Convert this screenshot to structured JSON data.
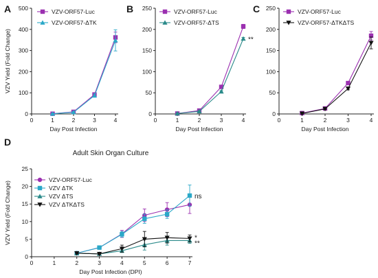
{
  "chart_data": [
    {
      "panel": "A",
      "type": "line",
      "ylabel": "VZV Yield (Fold Change)",
      "xlabel": "Day Post Infection",
      "xlim": [
        0,
        4
      ],
      "ylim": [
        0,
        500
      ],
      "xticks": [
        0,
        1,
        2,
        3,
        4
      ],
      "yticks": [
        0,
        100,
        200,
        300,
        400,
        500
      ],
      "legend_position": "top-left",
      "series": [
        {
          "name": "VZV-ORF57-Luc",
          "color": "#9b30b0",
          "marker": "square",
          "x": [
            1,
            2,
            3,
            4
          ],
          "y": [
            1,
            10,
            92,
            362
          ],
          "err": [
            2,
            4,
            8,
            25
          ]
        },
        {
          "name": "VZV-ORF57-ΔTK",
          "color": "#2aa8c8",
          "marker": "triangle-up",
          "x": [
            1,
            2,
            3,
            4
          ],
          "y": [
            1,
            8,
            87,
            348
          ],
          "err": [
            2,
            4,
            8,
            50
          ]
        }
      ],
      "annotations": []
    },
    {
      "panel": "B",
      "type": "line",
      "xlabel": "Day Post Infection",
      "xlim": [
        0,
        4
      ],
      "ylim": [
        0,
        250
      ],
      "xticks": [
        0,
        1,
        2,
        3,
        4
      ],
      "yticks": [
        0,
        50,
        100,
        150,
        200,
        250
      ],
      "legend_position": "top-left",
      "series": [
        {
          "name": "VZV-ORF57-Luc",
          "color": "#9b30b0",
          "marker": "square",
          "x": [
            1,
            2,
            3,
            4
          ],
          "y": [
            1,
            8,
            64,
            207
          ],
          "err": [
            1,
            2,
            3,
            5
          ]
        },
        {
          "name": "VZV-ORF57-ΔTS",
          "color": "#2a8a8a",
          "marker": "triangle-up",
          "x": [
            1,
            2,
            3,
            4
          ],
          "y": [
            1,
            6,
            53,
            178
          ],
          "err": [
            1,
            2,
            2,
            3
          ]
        }
      ],
      "annotations": [
        {
          "text": "**",
          "x": 4,
          "y": 178
        }
      ]
    },
    {
      "panel": "C",
      "type": "line",
      "xlabel": "Day Post Infection",
      "xlim": [
        0,
        4
      ],
      "ylim": [
        0,
        250
      ],
      "xticks": [
        0,
        1,
        2,
        3,
        4
      ],
      "yticks": [
        0,
        50,
        100,
        150,
        200,
        250
      ],
      "legend_position": "top-left",
      "series": [
        {
          "name": "VZV-ORF57-Luc",
          "color": "#9b30b0",
          "marker": "square",
          "x": [
            1,
            2,
            3,
            4
          ],
          "y": [
            2,
            13,
            73,
            185
          ],
          "err": [
            1,
            2,
            4,
            10
          ]
        },
        {
          "name": "VZV-ORF57-ΔTKΔTS",
          "color": "#111111",
          "marker": "triangle-down",
          "x": [
            1,
            2,
            3,
            4
          ],
          "y": [
            1,
            12,
            60,
            168
          ],
          "err": [
            1,
            2,
            3,
            14
          ]
        }
      ],
      "annotations": []
    },
    {
      "panel": "D",
      "type": "line",
      "subtitle": "Adult Skin Organ Culture",
      "ylabel": "VZV Yield (Fold Change)",
      "xlabel": "Day Post Infection (DPI)",
      "xlim": [
        0,
        7
      ],
      "ylim": [
        0,
        25
      ],
      "xticks": [
        0,
        1,
        2,
        3,
        4,
        5,
        6,
        7
      ],
      "yticks": [
        0,
        5,
        10,
        15,
        20,
        25
      ],
      "legend_position": "top-left",
      "series": [
        {
          "name": "VZV-ORF57-Luc",
          "color": "#9b30b0",
          "marker": "circle",
          "x": [
            2,
            3,
            4,
            5,
            6,
            7
          ],
          "y": [
            1,
            2.6,
            6.5,
            11.8,
            13.4,
            14.8
          ],
          "err": [
            0.2,
            0.4,
            1.0,
            1.8,
            2.0,
            2.5
          ]
        },
        {
          "name": "VZV ΔTK",
          "color": "#2aa8c8",
          "marker": "square",
          "x": [
            2,
            3,
            4,
            5,
            6,
            7
          ],
          "y": [
            1,
            2.6,
            6.4,
            10.8,
            12.1,
            17.4
          ],
          "err": [
            0.2,
            0.3,
            0.8,
            1.3,
            1.2,
            3.0
          ]
        },
        {
          "name": "VZV ΔTS",
          "color": "#2a8a8a",
          "marker": "triangle-up",
          "x": [
            2,
            3,
            4,
            5,
            6,
            7
          ],
          "y": [
            1,
            0.8,
            1.7,
            3.4,
            4.6,
            4.6
          ],
          "err": [
            0.2,
            0.2,
            0.5,
            1.5,
            1.3,
            0.8
          ]
        },
        {
          "name": "VZV ΔTKΔTS",
          "color": "#111111",
          "marker": "triangle-down",
          "x": [
            2,
            3,
            4,
            5,
            6,
            7
          ],
          "y": [
            1,
            0.8,
            2.3,
            5.0,
            5.4,
            5.2
          ],
          "err": [
            0.2,
            0.2,
            1.0,
            2.2,
            1.5,
            1.0
          ]
        }
      ],
      "annotations": [
        {
          "text": "ns",
          "x": 7,
          "y": 17.4
        },
        {
          "text": "*",
          "x": 7,
          "y": 5.6
        },
        {
          "text": "**",
          "x": 7,
          "y": 4.0
        }
      ]
    }
  ]
}
